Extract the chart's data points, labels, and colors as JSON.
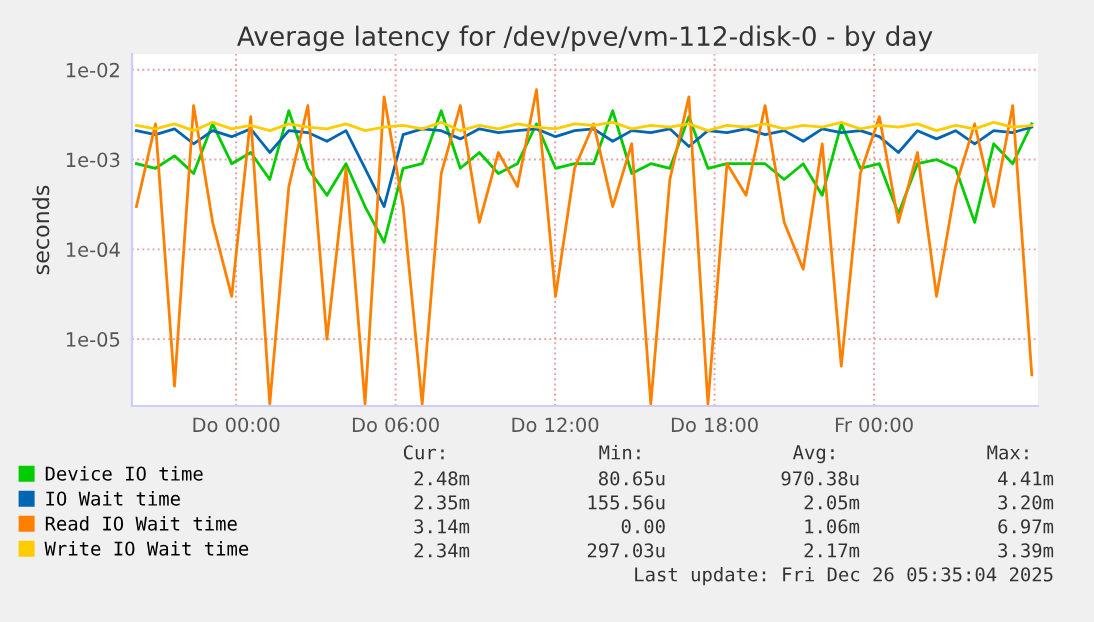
{
  "chart_data": {
    "type": "line",
    "title": "Average latency for /dev/pve/vm-112-disk-0 - by day",
    "ylabel": "seconds",
    "x": [
      "2025-12-24T20:15",
      "2025-12-24T20:58",
      "2025-12-24T21:41",
      "2025-12-24T22:24",
      "2025-12-24T23:07",
      "2025-12-24T23:50",
      "2025-12-25T00:33",
      "2025-12-25T01:16",
      "2025-12-25T01:59",
      "2025-12-25T02:42",
      "2025-12-25T03:25",
      "2025-12-25T04:08",
      "2025-12-25T04:51",
      "2025-12-25T05:34",
      "2025-12-25T06:17",
      "2025-12-25T07:00",
      "2025-12-25T07:43",
      "2025-12-25T08:26",
      "2025-12-25T09:09",
      "2025-12-25T09:52",
      "2025-12-25T10:35",
      "2025-12-25T11:18",
      "2025-12-25T12:01",
      "2025-12-25T12:44",
      "2025-12-25T13:27",
      "2025-12-25T14:10",
      "2025-12-25T14:53",
      "2025-12-25T15:36",
      "2025-12-25T16:19",
      "2025-12-25T17:02",
      "2025-12-25T17:45",
      "2025-12-25T18:28",
      "2025-12-25T19:11",
      "2025-12-25T19:54",
      "2025-12-25T20:37",
      "2025-12-25T21:20",
      "2025-12-25T22:03",
      "2025-12-25T22:46",
      "2025-12-25T23:29",
      "2025-12-26T00:12",
      "2025-12-26T00:55",
      "2025-12-26T01:38",
      "2025-12-26T02:21",
      "2025-12-26T03:04",
      "2025-12-26T03:47",
      "2025-12-26T04:30",
      "2025-12-26T05:13",
      "2025-12-26T05:56"
    ],
    "series": [
      {
        "name": "Device IO time",
        "color": "#00cc00",
        "values": [
          0.0009,
          0.0008,
          0.0011,
          0.0007,
          0.0025,
          0.0009,
          0.0012,
          0.0006,
          0.0035,
          0.0008,
          0.0004,
          0.0009,
          0.0003,
          0.00012,
          0.0008,
          0.0009,
          0.0035,
          0.0008,
          0.0012,
          0.0007,
          0.0009,
          0.0025,
          0.0008,
          0.0009,
          0.0009,
          0.0035,
          0.0007,
          0.0009,
          0.0008,
          0.003,
          0.0008,
          0.0009,
          0.0009,
          0.0009,
          0.0006,
          0.0009,
          0.0004,
          0.0025,
          0.0008,
          0.0009,
          0.00025,
          0.0009,
          0.001,
          0.0008,
          0.0002,
          0.0015,
          0.0009,
          0.0025
        ]
      },
      {
        "name": "IO Wait time",
        "color": "#0066b3",
        "values": [
          0.0021,
          0.0019,
          0.0022,
          0.0015,
          0.0021,
          0.0018,
          0.0022,
          0.0012,
          0.0021,
          0.002,
          0.0016,
          0.0021,
          0.0008,
          0.0003,
          0.0019,
          0.0022,
          0.0021,
          0.0017,
          0.0022,
          0.002,
          0.0021,
          0.0022,
          0.0018,
          0.0021,
          0.0022,
          0.0016,
          0.0021,
          0.002,
          0.0022,
          0.0014,
          0.0021,
          0.002,
          0.0022,
          0.0019,
          0.0021,
          0.0016,
          0.0022,
          0.002,
          0.0021,
          0.0018,
          0.0012,
          0.0021,
          0.0017,
          0.0021,
          0.0015,
          0.0021,
          0.002,
          0.0023
        ]
      },
      {
        "name": "Read IO Wait time",
        "color": "#ff8000",
        "values": [
          0.0003,
          0.0025,
          3e-06,
          0.004,
          0.0002,
          3e-05,
          0.003,
          1.9e-06,
          0.0005,
          0.004,
          1e-05,
          0.0008,
          1.9e-06,
          0.005,
          0.0003,
          1.9e-06,
          0.0007,
          0.004,
          0.0002,
          0.0012,
          0.0005,
          0.006,
          3e-05,
          0.0008,
          0.0025,
          0.0003,
          0.0015,
          1.9e-06,
          0.0006,
          0.005,
          1.9e-06,
          0.0009,
          0.0004,
          0.004,
          0.0002,
          6e-05,
          0.0015,
          5e-06,
          0.0007,
          0.003,
          0.0002,
          0.0012,
          3e-05,
          0.0005,
          0.0025,
          0.0003,
          0.004,
          4e-06
        ]
      },
      {
        "name": "Write IO Wait time",
        "color": "#ffcc00",
        "values": [
          0.0024,
          0.0022,
          0.0025,
          0.0021,
          0.0026,
          0.0022,
          0.0024,
          0.0021,
          0.0025,
          0.0023,
          0.0022,
          0.0025,
          0.0021,
          0.0023,
          0.0024,
          0.0022,
          0.0026,
          0.0021,
          0.0024,
          0.0022,
          0.0025,
          0.0023,
          0.0022,
          0.0025,
          0.0024,
          0.0026,
          0.0022,
          0.0024,
          0.0023,
          0.0025,
          0.0021,
          0.0024,
          0.0023,
          0.0025,
          0.0022,
          0.0024,
          0.0023,
          0.0026,
          0.0022,
          0.0024,
          0.0023,
          0.0025,
          0.0021,
          0.0024,
          0.0022,
          0.0026,
          0.0023,
          0.0024
        ]
      }
    ],
    "log": true,
    "xlim": [
      "2025-12-24T20:05",
      "2025-12-26T06:10"
    ],
    "ylim": [
      1.8e-06,
      0.015
    ],
    "xticks": [
      {
        "value": "2025-12-25T00:00",
        "label": "Do 00:00"
      },
      {
        "value": "2025-12-25T06:00",
        "label": "Do 06:00"
      },
      {
        "value": "2025-12-25T12:00",
        "label": "Do 12:00"
      },
      {
        "value": "2025-12-25T18:00",
        "label": "Do 18:00"
      },
      {
        "value": "2025-12-26T00:00",
        "label": "Fr 00:00"
      }
    ],
    "yticks": [
      {
        "value": 1e-05,
        "label": "1e-05"
      },
      {
        "value": 0.0001,
        "label": "1e-04"
      },
      {
        "value": 0.001,
        "label": "1e-03"
      },
      {
        "value": 0.01,
        "label": "1e-02"
      }
    ],
    "grid": true,
    "legend": "bottom",
    "marker": "none",
    "line_style": "solid",
    "annotations": [
      "Cur:",
      "Min:",
      "Avg:",
      "Max:",
      "2.48m",
      "80.65u",
      "970.38u",
      "4.41m",
      "2.35m",
      "155.56u",
      "2.05m",
      "3.20m",
      "3.14m",
      "0.00",
      "1.06m",
      "6.97m",
      "2.34m",
      "297.03u",
      "2.17m",
      "3.39m",
      "Last update: Fri Dec 26 05:35:04 2025"
    ]
  }
}
